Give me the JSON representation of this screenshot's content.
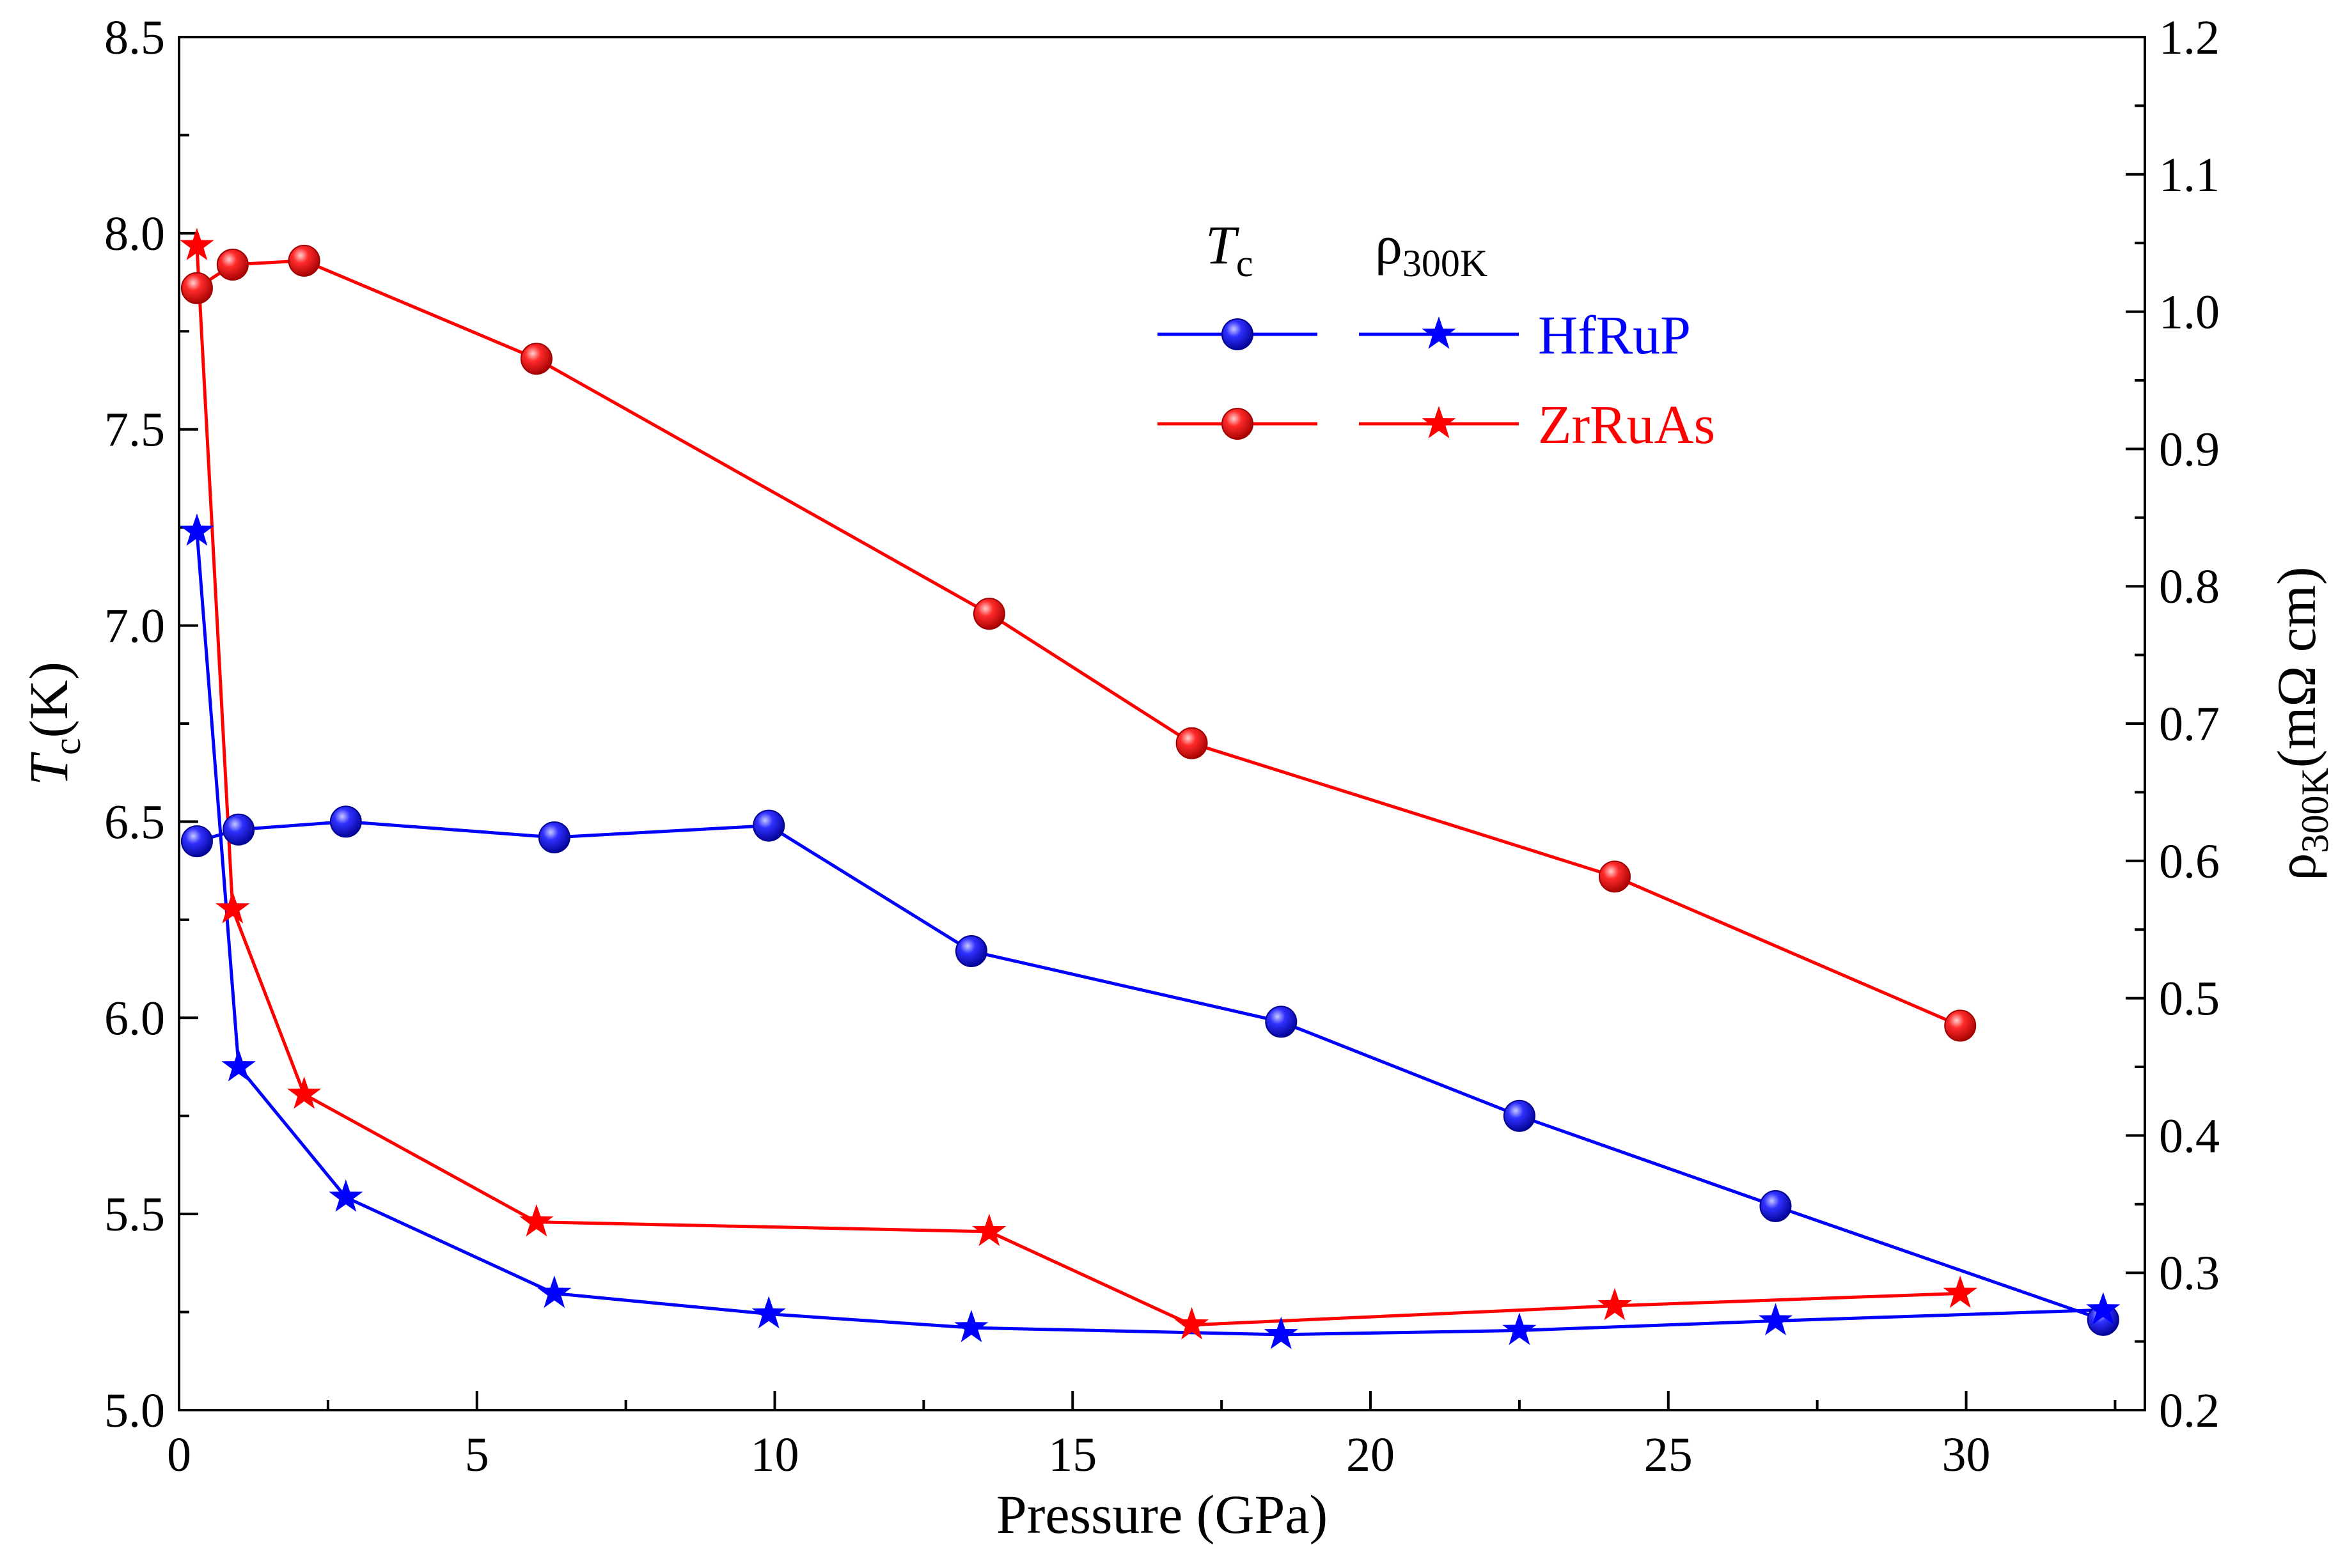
{
  "chart_data": {
    "type": "line",
    "xlabel": "Pressure (GPa)",
    "xlim": [
      0,
      33
    ],
    "x_ticks": [
      0,
      5,
      10,
      15,
      20,
      25,
      30
    ],
    "ylabel_left": {
      "main": "T",
      "sub": "c",
      "tail": "(K)"
    },
    "ylim_left": [
      5.0,
      8.5
    ],
    "y_ticks_left": [
      "5.0",
      "5.5",
      "6.0",
      "6.5",
      "7.0",
      "7.5",
      "8.0",
      "8.5"
    ],
    "ylabel_right": {
      "main": "ρ",
      "sub": "300K",
      "tail": "(mΩ cm)"
    },
    "ylim_right": [
      0.2,
      1.2
    ],
    "y_ticks_right": [
      "0.2",
      "0.3",
      "0.4",
      "0.5",
      "0.6",
      "0.7",
      "0.8",
      "0.9",
      "1.0",
      "1.1",
      "1.2"
    ],
    "legend": {
      "position": "top-center",
      "header_tc": {
        "main": "T",
        "sub": "c"
      },
      "header_rho": {
        "main": "ρ",
        "sub": "300K"
      },
      "entries": [
        "HfRuP",
        "ZrRuAs"
      ]
    },
    "series": [
      {
        "name": "HfRuP",
        "quantity": "Tc",
        "axis": "left",
        "marker": "sphere",
        "color": "#0000ff",
        "points": [
          [
            0.3,
            6.45
          ],
          [
            1.0,
            6.48
          ],
          [
            2.8,
            6.5
          ],
          [
            6.3,
            6.46
          ],
          [
            9.9,
            6.49
          ],
          [
            13.3,
            6.17
          ],
          [
            18.5,
            5.99
          ],
          [
            22.5,
            5.75
          ],
          [
            26.8,
            5.52
          ],
          [
            32.3,
            5.23
          ]
        ]
      },
      {
        "name": "ZrRuAs",
        "quantity": "Tc",
        "axis": "left",
        "marker": "sphere",
        "color": "#ff0000",
        "points": [
          [
            0.3,
            7.86
          ],
          [
            0.9,
            7.92
          ],
          [
            2.1,
            7.93
          ],
          [
            6.0,
            7.68
          ],
          [
            13.6,
            7.03
          ],
          [
            17.0,
            6.7
          ],
          [
            24.1,
            6.36
          ],
          [
            29.9,
            5.98
          ]
        ]
      },
      {
        "name": "HfRuP",
        "quantity": "rho300K",
        "axis": "right",
        "marker": "star",
        "color": "#0000ff",
        "points": [
          [
            0.3,
            0.84
          ],
          [
            1.0,
            0.45
          ],
          [
            2.8,
            0.355
          ],
          [
            6.3,
            0.285
          ],
          [
            9.9,
            0.27
          ],
          [
            13.3,
            0.26
          ],
          [
            18.5,
            0.255
          ],
          [
            22.5,
            0.258
          ],
          [
            26.8,
            0.265
          ],
          [
            32.3,
            0.273
          ]
        ]
      },
      {
        "name": "ZrRuAs",
        "quantity": "rho300K",
        "axis": "right",
        "marker": "star",
        "color": "#ff0000",
        "points": [
          [
            0.3,
            1.048
          ],
          [
            0.9,
            0.565
          ],
          [
            2.1,
            0.43
          ],
          [
            6.0,
            0.337
          ],
          [
            13.6,
            0.33
          ],
          [
            17.0,
            0.262
          ],
          [
            24.1,
            0.276
          ],
          [
            29.9,
            0.285
          ]
        ]
      }
    ]
  }
}
